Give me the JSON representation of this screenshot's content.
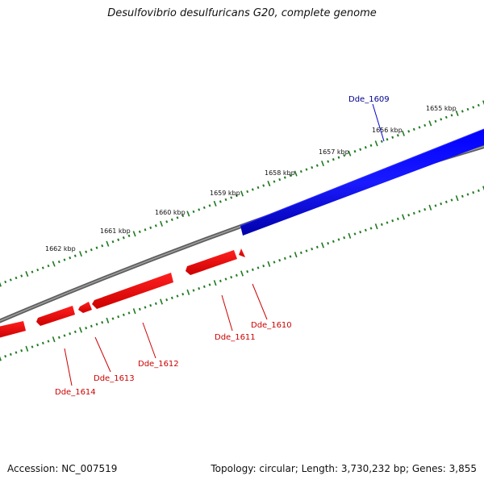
{
  "title": "Desulfovibrio desulfuricans G20, complete genome",
  "footer": {
    "accession": "Accession: NC_007519",
    "summary": "Topology: circular; Length: 3,730,232 bp; Genes: 3,855"
  },
  "colors": {
    "forward_gene": "#0000ee",
    "reverse_gene": "#ee0000",
    "backbone": "#7a7a7a",
    "ticks": "#1f7a1f",
    "forward_label": "#00008b",
    "reverse_label": "#cc0000"
  },
  "scale_ticks": [
    {
      "label": "1655 kbp"
    },
    {
      "label": "1656 kbp"
    },
    {
      "label": "1657 kbp"
    },
    {
      "label": "1658 kbp"
    },
    {
      "label": "1659 kbp"
    },
    {
      "label": "1660 kbp"
    },
    {
      "label": "1661 kbp"
    },
    {
      "label": "1662 kbp"
    }
  ],
  "genes": [
    {
      "name": "Dde_1609",
      "strand": "forward"
    },
    {
      "name": "Dde_1610",
      "strand": "reverse"
    },
    {
      "name": "Dde_1611",
      "strand": "reverse"
    },
    {
      "name": "Dde_1612",
      "strand": "reverse"
    },
    {
      "name": "Dde_1613",
      "strand": "reverse"
    },
    {
      "name": "Dde_1614",
      "strand": "reverse"
    }
  ]
}
